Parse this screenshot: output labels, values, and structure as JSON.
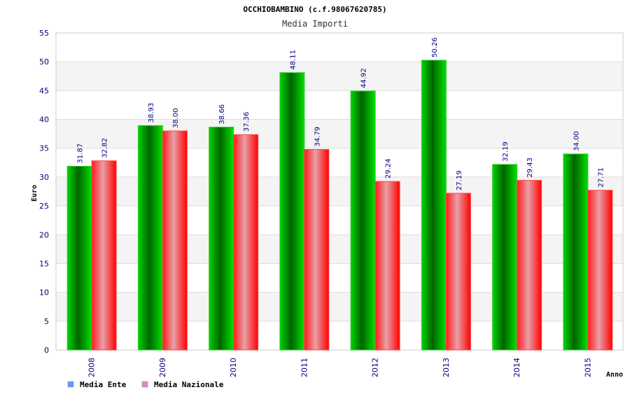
{
  "chart_data": {
    "type": "bar",
    "title": "OCCHIOBAMBINO (c.f.98067620785)",
    "subtitle": "Media Importi",
    "xlabel": "Anno",
    "ylabel": "Euro",
    "ylim": [
      0,
      55
    ],
    "yticks": [
      0,
      5,
      10,
      15,
      20,
      25,
      30,
      35,
      40,
      45,
      50,
      55
    ],
    "grid": true,
    "legend_position": "bottom-left",
    "categories": [
      "2008",
      "2009",
      "2010",
      "2011",
      "2012",
      "2013",
      "2014",
      "2015"
    ],
    "series": [
      {
        "name": "Media Ente",
        "values": [
          31.87,
          38.93,
          38.66,
          48.11,
          44.92,
          50.26,
          32.19,
          34.0
        ],
        "labels": [
          "31.87",
          "38.93",
          "38.66",
          "48.11",
          "44.92",
          "50.26",
          "32.19",
          "34.00"
        ],
        "color": "#00c000",
        "legend_color": "#6699ff"
      },
      {
        "name": "Media Nazionale",
        "values": [
          32.82,
          38.0,
          37.36,
          34.79,
          29.24,
          27.19,
          29.43,
          27.71
        ],
        "labels": [
          "32.82",
          "38.00",
          "37.36",
          "34.79",
          "29.24",
          "27.19",
          "29.43",
          "27.71"
        ],
        "color": "#ff0000",
        "legend_color": "#dd88cc"
      }
    ]
  }
}
